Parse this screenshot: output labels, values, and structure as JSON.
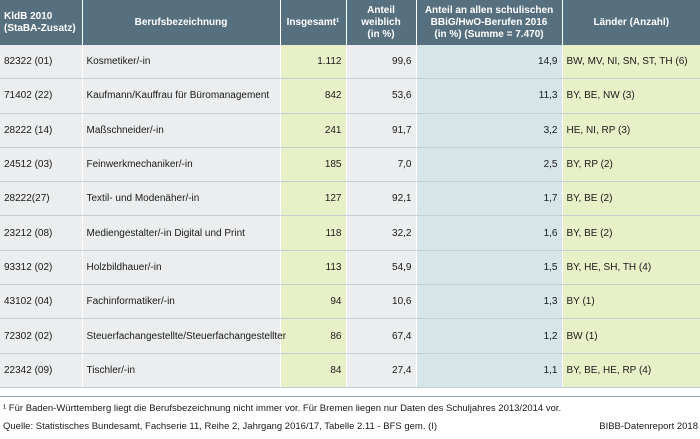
{
  "table": {
    "headers": {
      "kldb": [
        "KldB 2010",
        "(StaBA-Zusatz)"
      ],
      "beruf": "Berufsbezeichnung",
      "insgesamt": "Insgesamt¹",
      "anteil": [
        "Anteil",
        "weiblich",
        "(in %)"
      ],
      "share": [
        "Anteil an allen schulischen",
        "BBiG/HwO-Berufen 2016",
        "(in %) (Summe = 7.470)"
      ],
      "laender": "Länder (Anzahl)"
    },
    "rows": [
      {
        "kldb": "82322 (01)",
        "beruf": "Kosmetiker/-in",
        "insgesamt": "1.112",
        "anteil": "99,6",
        "share": "14,9",
        "laender": "BW, MV, NI, SN, ST, TH (6)"
      },
      {
        "kldb": "71402 (22)",
        "beruf": "Kaufmann/Kauffrau für Büromanagement",
        "insgesamt": "842",
        "anteil": "53,6",
        "share": "11,3",
        "laender": "BY, BE, NW (3)"
      },
      {
        "kldb": "28222 (14)",
        "beruf": "Maßschneider/-in",
        "insgesamt": "241",
        "anteil": "91,7",
        "share": "3,2",
        "laender": "HE, NI, RP (3)"
      },
      {
        "kldb": "24512 (03)",
        "beruf": "Feinwerkmechaniker/-in",
        "insgesamt": "185",
        "anteil": "7,0",
        "share": "2,5",
        "laender": "BY, RP (2)"
      },
      {
        "kldb": "28222(27)",
        "beruf": "Textil- und Modenäher/-in",
        "insgesamt": "127",
        "anteil": "92,1",
        "share": "1,7",
        "laender": "BY, BE (2)"
      },
      {
        "kldb": "23212 (08)",
        "beruf": "Mediengestalter/-in Digital und Print",
        "insgesamt": "118",
        "anteil": "32,2",
        "share": "1,6",
        "laender": "BY, BE (2)"
      },
      {
        "kldb": "93312 (02)",
        "beruf": "Holzbildhauer/-in",
        "insgesamt": "113",
        "anteil": "54,9",
        "share": "1,5",
        "laender": "BY, HE, SH, TH (4)"
      },
      {
        "kldb": "43102 (04)",
        "beruf": "Fachinformatiker/-in",
        "insgesamt": "94",
        "anteil": "10,6",
        "share": "1,3",
        "laender": "BY (1)"
      },
      {
        "kldb": "72302 (02)",
        "beruf": "Steuerfachangestellte/Steuerfachangestellter",
        "insgesamt": "86",
        "anteil": "67,4",
        "share": "1,2",
        "laender": "BW (1)"
      },
      {
        "kldb": "22342 (09)",
        "beruf": "Tischler/-in",
        "insgesamt": "84",
        "anteil": "27,4",
        "share": "1,1",
        "laender": "BY, BE, HE, RP (4)"
      }
    ]
  },
  "footnote": "¹ Für Baden-Württemberg liegt die Berufsbezeichnung nicht immer vor. Für Bremen liegen nur Daten des Schuljahres 2013/2014 vor.",
  "source": "Quelle: Statistisches Bundesamt, Fachserie 11, Reihe 2, Jahrgang 2016/17, Tabelle 2.11 - BFS gem. (I)",
  "publisher": "BIBB-Datenreport 2018",
  "colors": {
    "header_bg": "#56707f",
    "row_bg": "#ebedee",
    "green_col": "#e8f0c8",
    "blue_col": "#d5e5e8"
  }
}
